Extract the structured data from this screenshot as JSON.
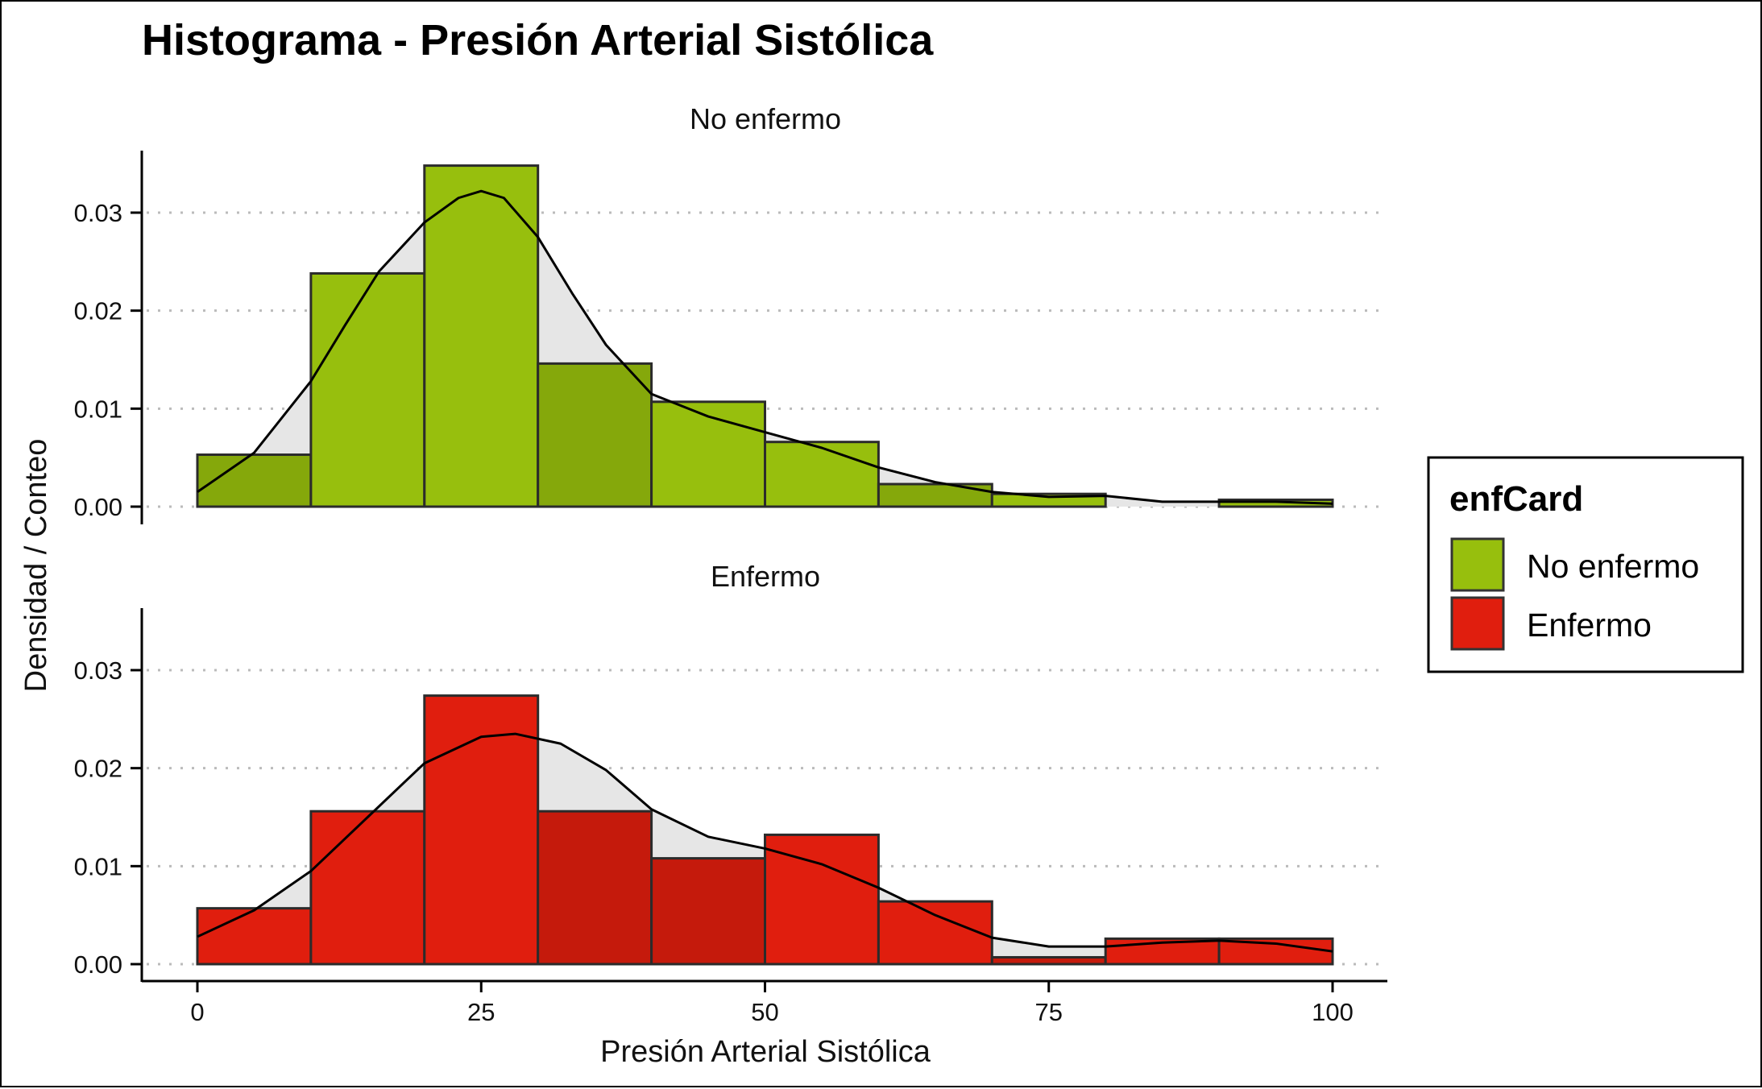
{
  "chart_data": {
    "type": "bar",
    "title": "Histograma - Presión Arterial Sistólica",
    "xlabel": "Presión Arterial Sistólica",
    "ylabel": "Densidad / Conteo",
    "xlim": [
      0,
      100
    ],
    "ylim": [
      0,
      0.035
    ],
    "xticks": [
      "0",
      "25",
      "50",
      "75",
      "100"
    ],
    "yticks": [
      "0.00",
      "0.01",
      "0.02",
      "0.03"
    ],
    "grid": "horizontal dotted",
    "legend": {
      "title": "enfCard",
      "position": "right",
      "entries": [
        {
          "label": "No enfermo",
          "color": "#97BF0D"
        },
        {
          "label": "Enfermo",
          "color": "#E01E0E"
        }
      ]
    },
    "bin_edges": [
      0,
      10,
      20,
      30,
      40,
      50,
      60,
      70,
      80,
      90,
      100
    ],
    "panels": [
      {
        "strip": "No enfermo",
        "color": "#97BF0D",
        "densities": [
          0.0053,
          0.0238,
          0.0348,
          0.0146,
          0.0107,
          0.0066,
          0.0023,
          0.0013,
          0.0,
          0.0007
        ],
        "density_curve": {
          "x": [
            0,
            5,
            10,
            13,
            16,
            20,
            23,
            25,
            27,
            30,
            33,
            36,
            40,
            45,
            50,
            55,
            60,
            65,
            70,
            75,
            80,
            85,
            90,
            95,
            100
          ],
          "y": [
            0.0015,
            0.0055,
            0.0128,
            0.0185,
            0.024,
            0.029,
            0.0315,
            0.0322,
            0.0315,
            0.0275,
            0.0218,
            0.0165,
            0.0115,
            0.0092,
            0.0076,
            0.006,
            0.004,
            0.0025,
            0.0015,
            0.001,
            0.0011,
            0.0005,
            0.0005,
            0.0005,
            0.0003
          ]
        }
      },
      {
        "strip": "Enfermo",
        "color": "#E01E0E",
        "densities": [
          0.0057,
          0.0156,
          0.0274,
          0.0156,
          0.0108,
          0.0132,
          0.0064,
          0.0007,
          0.0026,
          0.0026
        ],
        "density_curve": {
          "x": [
            0,
            5,
            10,
            15,
            20,
            25,
            28,
            32,
            36,
            40,
            45,
            50,
            55,
            60,
            65,
            70,
            75,
            80,
            85,
            90,
            95,
            100
          ],
          "y": [
            0.0028,
            0.0055,
            0.0095,
            0.015,
            0.0205,
            0.0232,
            0.0235,
            0.0225,
            0.0198,
            0.0158,
            0.013,
            0.0118,
            0.0102,
            0.0078,
            0.005,
            0.0027,
            0.0018,
            0.0018,
            0.0022,
            0.0024,
            0.0021,
            0.0013
          ]
        }
      }
    ]
  }
}
